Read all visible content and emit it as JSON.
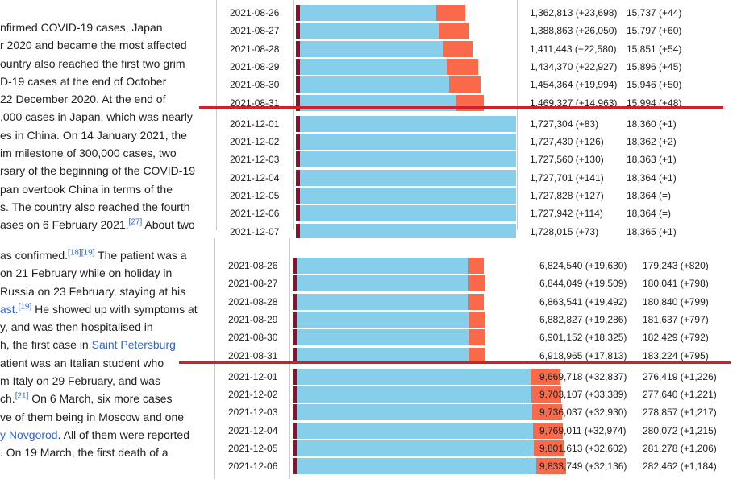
{
  "top": {
    "prose": [
      {
        "text": "nfirmed COVID-19 cases, Japan"
      },
      {
        "text": "r 2020 and became the most affected"
      },
      {
        "text": "ountry also reached the first two grim"
      },
      {
        "text": "D-19 cases at the end of October"
      },
      {
        "text": " 22 December 2020. At the end of"
      },
      {
        "text": ",000 cases in Japan, which was nearly"
      },
      {
        "text": "es in China. On 14 January 2021, the"
      },
      {
        "text": "im milestone of 300,000 cases, two"
      },
      {
        "text": "rsary of the beginning of the COVID-19"
      },
      {
        "text": "pan overtook China in terms of the"
      },
      {
        "text": "s. The country also reached the fourth"
      },
      {
        "text": "ases on 6 February 2021.",
        "cite": "[27]",
        "after": " About two"
      }
    ],
    "rows": [
      {
        "date": "2021-08-26",
        "cases": "1,362,813 (+23,698)",
        "deaths": "15,737 (+44)",
        "active": 0.635,
        "recovered": 0.132
      },
      {
        "date": "2021-08-27",
        "cases": "1,388,863 (+26,050)",
        "deaths": "15,797 (+60)",
        "active": 0.647,
        "recovered": 0.138
      },
      {
        "date": "2021-08-28",
        "cases": "1,411,443 (+22,580)",
        "deaths": "15,851 (+54)",
        "active": 0.665,
        "recovered": 0.135
      },
      {
        "date": "2021-08-29",
        "cases": "1,434,370 (+22,927)",
        "deaths": "15,896 (+45)",
        "active": 0.681,
        "recovered": 0.143
      },
      {
        "date": "2021-08-30",
        "cases": "1,454,364 (+19,994)",
        "deaths": "15,946 (+50)",
        "active": 0.693,
        "recovered": 0.143
      },
      {
        "date": "2021-08-31",
        "cases": "1,469,327 (+14,963)",
        "deaths": "15,994 (+48)",
        "active": 0.721,
        "recovered": 0.128
      },
      {
        "date": "2021-12-01",
        "cases": "1,727,304 (+83)",
        "deaths": "18,360 (+1)",
        "active": 0.995,
        "recovered": 0.0
      },
      {
        "date": "2021-12-02",
        "cases": "1,727,430 (+126)",
        "deaths": "18,362 (+2)",
        "active": 0.995,
        "recovered": 0.0
      },
      {
        "date": "2021-12-03",
        "cases": "1,727,560 (+130)",
        "deaths": "18,363 (+1)",
        "active": 0.995,
        "recovered": 0.0
      },
      {
        "date": "2021-12-04",
        "cases": "1,727,701 (+141)",
        "deaths": "18,364 (+1)",
        "active": 0.995,
        "recovered": 0.0
      },
      {
        "date": "2021-12-05",
        "cases": "1,727,828 (+127)",
        "deaths": "18,364 (=)",
        "active": 0.995,
        "recovered": 0.0
      },
      {
        "date": "2021-12-06",
        "cases": "1,727,942 (+114)",
        "deaths": "18,364 (=)",
        "active": 0.995,
        "recovered": 0.0
      },
      {
        "date": "2021-12-07",
        "cases": "1,728,015 (+73)",
        "deaths": "18,365 (+1)",
        "active": 0.995,
        "recovered": 0.0
      }
    ]
  },
  "bottom": {
    "prose": [
      {
        "text": "as confirmed.",
        "cite": "[18][19]",
        "after": " The patient was a"
      },
      {
        "text": "on 21 February while on holiday in"
      },
      {
        "text": "Russia on 23 February, staying at his"
      },
      {
        "link": "ast.",
        "cite": "[19]",
        "after": " He showed up with symptoms at"
      },
      {
        "text": "y, and was then hospitalised in"
      },
      {
        "text": "h, the first case in ",
        "link_after": "Saint Petersburg"
      },
      {
        "text": "atient was an Italian student who"
      },
      {
        "text": "m Italy on 29 February, and was"
      },
      {
        "text": "ch.",
        "cite": "[21]",
        "after": " On 6 March, six more cases"
      },
      {
        "text": "ve of them being in Moscow and one"
      },
      {
        "link": "y Novgorod",
        "after": ". All of them were reported"
      },
      {
        "text": ". On 19 March, the first death of a"
      }
    ],
    "rows": [
      {
        "date": "2021-08-26",
        "cases": "6,824,540 (+19,630)",
        "deaths": "179,243 (+820)",
        "active": 0.589,
        "recovered": 0.052
      },
      {
        "date": "2021-08-27",
        "cases": "6,844,049 (+19,509)",
        "deaths": "180,041 (+798)",
        "active": 0.589,
        "recovered": 0.056
      },
      {
        "date": "2021-08-28",
        "cases": "6,863,541 (+19,492)",
        "deaths": "180,840 (+799)",
        "active": 0.589,
        "recovered": 0.052
      },
      {
        "date": "2021-08-29",
        "cases": "6,882,827 (+19,286)",
        "deaths": "181,637 (+797)",
        "active": 0.592,
        "recovered": 0.052
      },
      {
        "date": "2021-08-30",
        "cases": "6,901,152 (+18,325)",
        "deaths": "182,429 (+792)",
        "active": 0.592,
        "recovered": 0.052
      },
      {
        "date": "2021-08-31",
        "cases": "6,918,965 (+17,813)",
        "deaths": "183,224 (+795)",
        "active": 0.592,
        "recovered": 0.052
      },
      {
        "date": "2021-12-01",
        "cases": "9,669,718 (+32,837)",
        "deaths": "276,419 (+1,226)",
        "active": 0.796,
        "recovered": 0.101
      },
      {
        "date": "2021-12-02",
        "cases": "9,703,107 (+33,389)",
        "deaths": "277,640 (+1,221)",
        "active": 0.799,
        "recovered": 0.101
      },
      {
        "date": "2021-12-03",
        "cases": "9,736,037 (+32,930)",
        "deaths": "278,857 (+1,217)",
        "active": 0.802,
        "recovered": 0.101
      },
      {
        "date": "2021-12-04",
        "cases": "9,769,011 (+32,974)",
        "deaths": "280,072 (+1,215)",
        "active": 0.806,
        "recovered": 0.101
      },
      {
        "date": "2021-12-05",
        "cases": "9,801,613 (+32,602)",
        "deaths": "281,278 (+1,206)",
        "active": 0.809,
        "recovered": 0.101
      },
      {
        "date": "2021-12-06",
        "cases": "9,833,749 (+32,136)",
        "deaths": "282,462 (+1,184)",
        "active": 0.816,
        "recovered": 0.101
      }
    ]
  },
  "colors": {
    "deaths_bar": "#8b1228",
    "active_bar": "#87ceeb",
    "recovered_bar": "#fa6a4a",
    "divider_line": "#d0202a",
    "link": "#3366cc"
  }
}
